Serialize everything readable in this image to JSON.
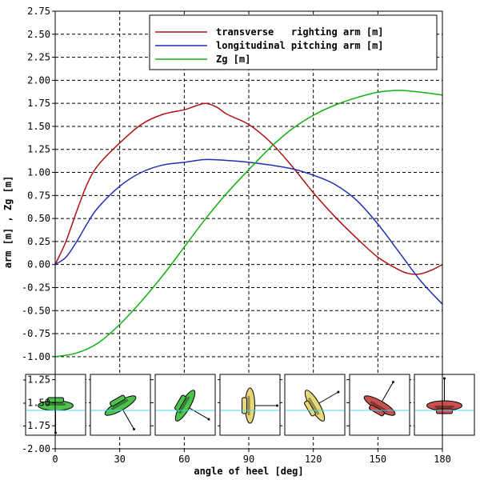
{
  "chart_data": {
    "type": "line",
    "xlabel": "angle of heel [deg]",
    "ylabel": "arm [m] , Zg [m]",
    "xlim": [
      0,
      180
    ],
    "ylim": [
      -2.0,
      2.75
    ],
    "x_ticks": [
      "0",
      "30",
      "60",
      "90",
      "120",
      "150",
      "180"
    ],
    "y_ticks": [
      "2.75",
      "2.50",
      "2.25",
      "2.00",
      "1.75",
      "1.50",
      "1.25",
      "1.00",
      "0.75",
      "0.50",
      "0.25",
      "0.00",
      "-0.25",
      "-0.50",
      "-0.75",
      "-1.00",
      "-1.25",
      "-1.50",
      "-1.75",
      "-2.00"
    ],
    "grid": true,
    "legend_position": "top-right",
    "series": [
      {
        "name": "transverse   righting arm [m]",
        "color": "#b01010",
        "points": [
          [
            0,
            0.0
          ],
          [
            5,
            0.25
          ],
          [
            10,
            0.58
          ],
          [
            15,
            0.88
          ],
          [
            20,
            1.08
          ],
          [
            30,
            1.32
          ],
          [
            40,
            1.52
          ],
          [
            50,
            1.63
          ],
          [
            60,
            1.68
          ],
          [
            65,
            1.72
          ],
          [
            70,
            1.75
          ],
          [
            75,
            1.71
          ],
          [
            80,
            1.63
          ],
          [
            90,
            1.52
          ],
          [
            100,
            1.33
          ],
          [
            110,
            1.07
          ],
          [
            120,
            0.78
          ],
          [
            130,
            0.52
          ],
          [
            140,
            0.29
          ],
          [
            150,
            0.08
          ],
          [
            160,
            -0.06
          ],
          [
            165,
            -0.1
          ],
          [
            170,
            -0.1
          ],
          [
            175,
            -0.06
          ],
          [
            180,
            0.0
          ]
        ]
      },
      {
        "name": "longitudinal pitching arm [m]",
        "color": "#2030b0",
        "points": [
          [
            0,
            0.0
          ],
          [
            5,
            0.08
          ],
          [
            10,
            0.25
          ],
          [
            15,
            0.45
          ],
          [
            20,
            0.62
          ],
          [
            30,
            0.85
          ],
          [
            40,
            1.0
          ],
          [
            50,
            1.08
          ],
          [
            60,
            1.11
          ],
          [
            70,
            1.14
          ],
          [
            80,
            1.13
          ],
          [
            90,
            1.11
          ],
          [
            100,
            1.08
          ],
          [
            110,
            1.04
          ],
          [
            120,
            0.97
          ],
          [
            130,
            0.87
          ],
          [
            140,
            0.7
          ],
          [
            150,
            0.44
          ],
          [
            160,
            0.13
          ],
          [
            170,
            -0.18
          ],
          [
            180,
            -0.43
          ]
        ]
      },
      {
        "name": "Zg [m]",
        "color": "#10b010",
        "points": [
          [
            0,
            -1.0
          ],
          [
            10,
            -0.96
          ],
          [
            20,
            -0.85
          ],
          [
            30,
            -0.65
          ],
          [
            40,
            -0.4
          ],
          [
            50,
            -0.12
          ],
          [
            60,
            0.19
          ],
          [
            70,
            0.5
          ],
          [
            80,
            0.78
          ],
          [
            90,
            1.03
          ],
          [
            100,
            1.27
          ],
          [
            110,
            1.47
          ],
          [
            120,
            1.62
          ],
          [
            130,
            1.73
          ],
          [
            140,
            1.81
          ],
          [
            150,
            1.87
          ],
          [
            160,
            1.89
          ],
          [
            170,
            1.87
          ],
          [
            180,
            1.84
          ]
        ]
      }
    ],
    "heel_thumbnails": [
      {
        "hull_color": "#4ec04e",
        "heel_deg": 0
      },
      {
        "hull_color": "#4ec04e",
        "heel_deg": 30
      },
      {
        "hull_color": "#4ec04e",
        "heel_deg": 60
      },
      {
        "hull_color": "#e6d878",
        "heel_deg": 90
      },
      {
        "hull_color": "#e6d878",
        "heel_deg": 120
      },
      {
        "hull_color": "#c85050",
        "heel_deg": 150
      },
      {
        "hull_color": "#c85050",
        "heel_deg": 180
      }
    ]
  }
}
